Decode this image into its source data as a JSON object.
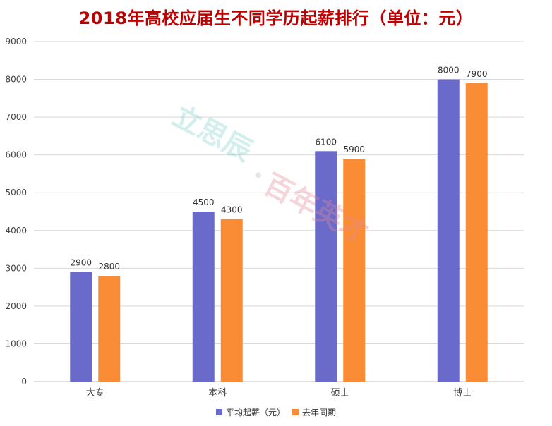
{
  "chart_data": {
    "type": "bar",
    "title": "2018年高校应届生不同学历起薪排行（单位：元）",
    "categories": [
      "大专",
      "本科",
      "硕士",
      "博士"
    ],
    "series": [
      {
        "name": "平均起薪（元）",
        "values": [
          2900,
          4500,
          6100,
          8000
        ],
        "color": "#6a6acb"
      },
      {
        "name": "去年同期",
        "values": [
          2800,
          4300,
          5900,
          7900
        ],
        "color": "#fa8c35"
      }
    ],
    "y_ticks": [
      0,
      1000,
      2000,
      3000,
      4000,
      5000,
      6000,
      7000,
      8000,
      9000
    ],
    "ylim": [
      0,
      9000
    ],
    "grid": true,
    "legend_position": "bottom",
    "xlabel": "",
    "ylabel": ""
  },
  "watermark": "立思辰·百年英才"
}
